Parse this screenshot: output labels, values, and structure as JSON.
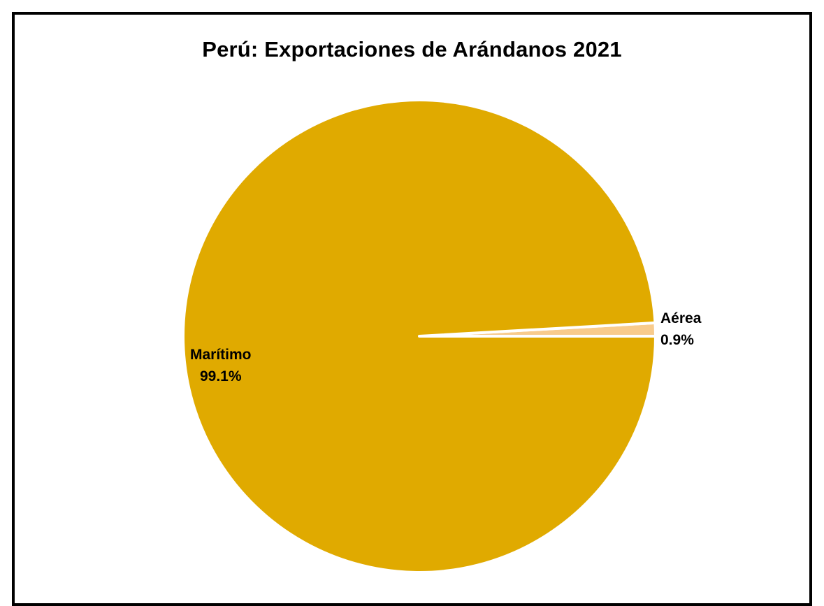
{
  "chart_data": {
    "type": "pie",
    "title": "Perú: Exportaciones de Arándanos 2021",
    "slices": [
      {
        "label": "Aérea",
        "value": 0.9,
        "value_label": "0.9%",
        "color": "#F8CB8C"
      },
      {
        "label": "Marítimo",
        "value": 99.1,
        "value_label": "99.1%",
        "color": "#E0AA00"
      }
    ],
    "legend": "none",
    "data_labels": "category-and-percent"
  }
}
